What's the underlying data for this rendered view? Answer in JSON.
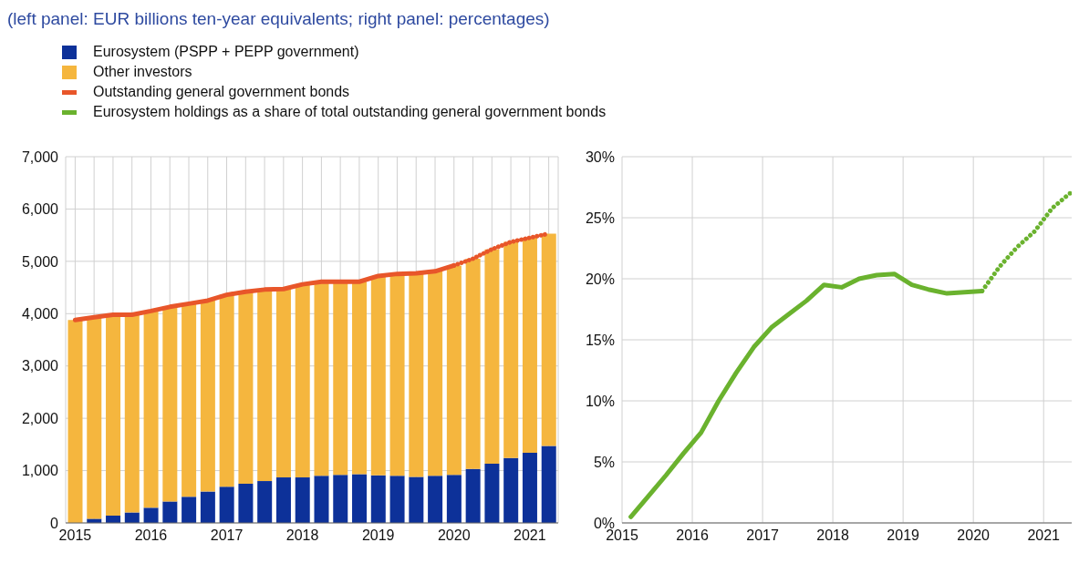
{
  "chart_data": [
    {
      "type": "bar",
      "title": "(left panel: EUR billions ten-year equivalents; right panel: percentages)",
      "stacked": true,
      "legend": "top left",
      "grid": true,
      "categories": [
        "2015",
        null,
        null,
        null,
        "2016",
        null,
        null,
        null,
        "2017",
        null,
        null,
        null,
        "2018",
        null,
        null,
        null,
        "2019",
        null,
        null,
        null,
        "2020",
        null,
        null,
        null,
        "2021",
        null
      ],
      "ylim": [
        0,
        7000
      ],
      "yticks": [
        0,
        {
          "value": 1000,
          "label": "1,000"
        },
        {
          "value": 2000,
          "label": "2,000"
        },
        {
          "value": 3000,
          "label": "3,000"
        },
        {
          "value": 4000,
          "label": "4,000"
        },
        {
          "value": 5000,
          "label": "5,000"
        },
        {
          "value": 6000,
          "label": "6,000"
        },
        {
          "value": 7000,
          "label": "7,000"
        }
      ],
      "series": [
        {
          "name": "Eurosystem (PSPP + PEPP government)",
          "color": "#0d3199",
          "values": [
            0,
            80,
            140,
            200,
            290,
            410,
            500,
            600,
            690,
            750,
            800,
            870,
            870,
            900,
            920,
            930,
            910,
            900,
            880,
            900,
            920,
            1030,
            1130,
            1240,
            1340,
            1470
          ]
        },
        {
          "name": "Other investors",
          "color": "#f5b63e",
          "values": [
            3880,
            3850,
            3840,
            3780,
            3760,
            3720,
            3690,
            3650,
            3670,
            3670,
            3660,
            3600,
            3690,
            3710,
            3690,
            3680,
            3810,
            3860,
            3890,
            3910,
            4000,
            4020,
            4100,
            4130,
            4110,
            4060
          ]
        },
        {
          "name": "Outstanding general government bonds",
          "type": "line",
          "color": "#e8562a",
          "line_style": "solid",
          "values": [
            3880,
            3930,
            3980,
            3980,
            4050,
            4130,
            4190,
            4250,
            4360,
            4420,
            4460,
            4470,
            4560,
            4610,
            4610,
            4610,
            4720,
            4760,
            4770,
            4810,
            4920,
            null,
            null,
            null,
            null,
            null
          ]
        },
        {
          "type": "line",
          "color": "#e8562a",
          "line_style": "dotted",
          "values": [
            null,
            null,
            null,
            null,
            null,
            null,
            null,
            null,
            null,
            null,
            null,
            null,
            null,
            null,
            null,
            null,
            null,
            null,
            null,
            null,
            4920,
            5050,
            5230,
            5370,
            5450,
            5530
          ]
        }
      ]
    },
    {
      "type": "line",
      "legend": "top left",
      "grid": true,
      "xlim": [
        2015,
        2021.4
      ],
      "xticks": [
        2015,
        2016,
        2017,
        2018,
        2019,
        2020,
        2021
      ],
      "ylim": [
        0,
        30
      ],
      "yticks": [
        {
          "value": 0,
          "label": "0%"
        },
        {
          "value": 5,
          "label": "5%"
        },
        {
          "value": 10,
          "label": "10%"
        },
        {
          "value": 15,
          "label": "15%"
        },
        {
          "value": 20,
          "label": "20%"
        },
        {
          "value": 25,
          "label": "25%"
        },
        {
          "value": 30,
          "label": "30%"
        }
      ],
      "series": [
        {
          "name": "Eurosystem holdings as a share of total outstanding general government bonds",
          "color": "#6ab22e",
          "line_style": "solid",
          "x": [
            2015.125,
            2015.375,
            2015.625,
            2015.875,
            2016.125,
            2016.375,
            2016.625,
            2016.875,
            2017.125,
            2017.375,
            2017.625,
            2017.875,
            2018.125,
            2018.375,
            2018.625,
            2018.875,
            2019.125,
            2019.375,
            2019.625,
            2019.875,
            2020.125
          ],
          "values": [
            0.5,
            2.2,
            3.9,
            5.7,
            7.4,
            10.0,
            12.3,
            14.4,
            16.0,
            17.1,
            18.2,
            19.5,
            19.3,
            20.0,
            20.3,
            20.4,
            19.5,
            19.1,
            18.8,
            18.9,
            19.0
          ]
        },
        {
          "color": "#6ab22e",
          "line_style": "dotted",
          "x": [
            2020.125,
            2020.375,
            2020.625,
            2020.875,
            2021.125,
            2021.375
          ],
          "values": [
            19.0,
            21.0,
            22.6,
            23.9,
            25.8,
            27.0
          ]
        }
      ]
    }
  ]
}
